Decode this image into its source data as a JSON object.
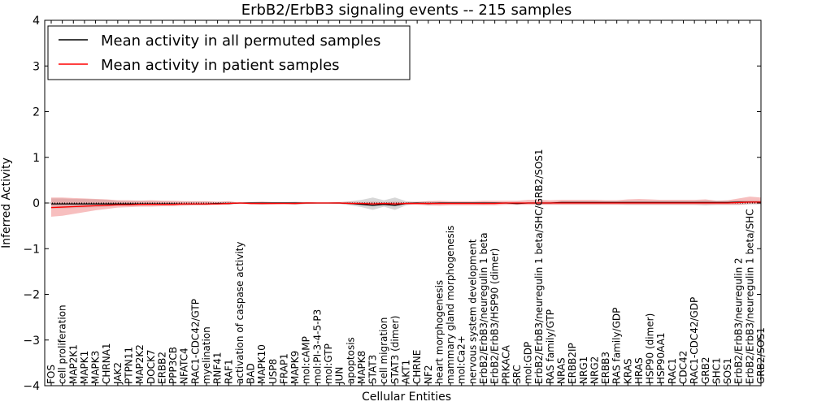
{
  "chart_data": {
    "type": "line",
    "title": "ErbB2/ErbB3 signaling events -- 215 samples",
    "xlabel": "Cellular Entities",
    "ylabel": "Inferred Activity",
    "ylim": [
      -4,
      4
    ],
    "yticks": [
      -4,
      -3,
      -2,
      -1,
      0,
      1,
      2,
      3,
      4
    ],
    "ytick_labels": [
      "−4",
      "−3",
      "−2",
      "−1",
      "0",
      "1",
      "2",
      "3",
      "4"
    ],
    "grid": false,
    "legend_position": "top-left",
    "categories": [
      "FOS",
      "cell proliferation",
      "MAP2K1",
      "MAPK1",
      "MAPK3",
      "CHRNA1",
      "JAK2",
      "PTPN11",
      "MAP2K2",
      "DOCK7",
      "ERBB2",
      "PPP3CB",
      "NFATC4",
      "RAC1-CDC42/GTP",
      "myelination",
      "RNF41",
      "RAF1",
      "activation of caspase activity",
      "BAD",
      "MAPK10",
      "USP8",
      "FRAP1",
      "MAPK9",
      "mol:cAMP",
      "mol:PI-3-4-5-P3",
      "mol:GTP",
      "JUN",
      "apoptosis",
      "MAPK8",
      "STAT3",
      "cell migration",
      "STAT3 (dimer)",
      "AKT1",
      "CHRNE",
      "NF2",
      "heart morphogenesis",
      "mammary gland morphogenesis",
      "mol:Ca2+",
      "nervous system development",
      "ErbB2/ErbB3/neuregulin 1 beta",
      "ErbB2/ErbB3/HSP90 (dimer)",
      "PRKACA",
      "SRC",
      "mol:GDP",
      "ErbB2/ErbB3/neuregulin 1 beta/SHC/GRB2/SOS1",
      "RAS family/GTP",
      "NRAS",
      "ERBB2IP",
      "NRG1",
      "NRG2",
      "ERBB3",
      "RAS family/GDP",
      "KRAS",
      "HRAS",
      "HSP90 (dimer)",
      "HSP90AA1",
      "RAC1",
      "CDC42",
      "RAC1-CDC42/GDP",
      "GRB2",
      "SHC1",
      "SOS1",
      "ErbB2/ErbB3/neuregulin 2",
      "ErbB2/ErbB3/neuregulin 1 beta/SHC",
      "GRB2/SOS1"
    ],
    "series": [
      {
        "name": "Mean activity in all permuted samples",
        "color": "#000000",
        "style": "solid",
        "values": [
          -0.02,
          -0.02,
          -0.02,
          -0.02,
          -0.02,
          -0.02,
          -0.02,
          -0.02,
          -0.02,
          -0.02,
          -0.02,
          -0.02,
          -0.02,
          -0.02,
          -0.02,
          -0.01,
          -0.01,
          0.0,
          0.0,
          0.0,
          0.0,
          0.0,
          0.0,
          0.0,
          0.0,
          0.0,
          0.0,
          -0.01,
          -0.03,
          -0.05,
          -0.03,
          -0.05,
          -0.01,
          0.0,
          -0.01,
          0.0,
          0.0,
          0.0,
          0.0,
          0.0,
          0.0,
          0.0,
          -0.01,
          0.0,
          0.0,
          0.0,
          0.01,
          0.01,
          0.01,
          0.01,
          0.01,
          0.01,
          0.01,
          0.01,
          0.01,
          0.01,
          0.01,
          0.01,
          0.01,
          0.01,
          0.01,
          0.01,
          0.02,
          0.02,
          0.02
        ],
        "band": {
          "color": "#b0b0b0",
          "lower": [
            -0.12,
            -0.12,
            -0.11,
            -0.1,
            -0.09,
            -0.08,
            -0.06,
            -0.05,
            -0.06,
            -0.05,
            -0.05,
            -0.04,
            -0.04,
            -0.04,
            -0.04,
            -0.03,
            -0.04,
            -0.01,
            -0.02,
            -0.04,
            -0.02,
            -0.02,
            -0.04,
            -0.02,
            -0.01,
            -0.01,
            -0.02,
            -0.05,
            -0.09,
            -0.15,
            -0.08,
            -0.15,
            -0.05,
            -0.02,
            -0.05,
            -0.03,
            -0.02,
            -0.02,
            -0.02,
            -0.03,
            -0.02,
            -0.02,
            -0.04,
            -0.02,
            -0.03,
            -0.03,
            -0.03,
            -0.03,
            -0.03,
            -0.03,
            -0.03,
            -0.03,
            -0.04,
            -0.04,
            -0.04,
            -0.04,
            -0.04,
            -0.04,
            -0.04,
            -0.05,
            -0.04,
            -0.04,
            -0.04,
            -0.03,
            -0.03
          ],
          "upper": [
            0.1,
            0.1,
            0.09,
            0.09,
            0.08,
            0.07,
            0.05,
            0.04,
            0.05,
            0.04,
            0.04,
            0.03,
            0.03,
            0.03,
            0.03,
            0.02,
            0.03,
            0.01,
            0.02,
            0.03,
            0.02,
            0.02,
            0.03,
            0.02,
            0.01,
            0.01,
            0.02,
            0.04,
            0.07,
            0.12,
            0.06,
            0.12,
            0.04,
            0.02,
            0.04,
            0.03,
            0.02,
            0.02,
            0.02,
            0.03,
            0.02,
            0.02,
            0.03,
            0.02,
            0.03,
            0.03,
            0.04,
            0.04,
            0.04,
            0.04,
            0.04,
            0.04,
            0.05,
            0.05,
            0.05,
            0.05,
            0.05,
            0.05,
            0.05,
            0.06,
            0.05,
            0.05,
            0.06,
            0.06,
            0.06
          ]
        }
      },
      {
        "name": "Mean activity in patient samples",
        "color": "#ff0000",
        "style": "solid",
        "values": [
          -0.1,
          -0.09,
          -0.08,
          -0.07,
          -0.06,
          -0.05,
          -0.04,
          -0.04,
          -0.03,
          -0.03,
          -0.03,
          -0.03,
          -0.02,
          -0.02,
          -0.02,
          -0.02,
          -0.01,
          0.0,
          -0.01,
          -0.01,
          -0.01,
          -0.01,
          -0.01,
          0.0,
          0.0,
          0.0,
          0.0,
          -0.01,
          -0.01,
          -0.02,
          -0.01,
          -0.02,
          -0.01,
          -0.01,
          -0.01,
          -0.01,
          -0.01,
          -0.01,
          -0.01,
          -0.01,
          -0.01,
          0.0,
          0.0,
          0.0,
          0.0,
          0.0,
          0.0,
          0.0,
          0.0,
          0.0,
          0.0,
          0.0,
          0.0,
          0.0,
          0.0,
          0.0,
          0.0,
          0.0,
          0.0,
          0.0,
          0.0,
          0.0,
          0.01,
          0.02,
          0.02
        ],
        "band": {
          "color": "#f08080",
          "lower": [
            -0.3,
            -0.28,
            -0.24,
            -0.2,
            -0.16,
            -0.13,
            -0.1,
            -0.09,
            -0.08,
            -0.08,
            -0.07,
            -0.07,
            -0.06,
            -0.05,
            -0.05,
            -0.04,
            -0.03,
            -0.01,
            -0.03,
            -0.03,
            -0.03,
            -0.02,
            -0.03,
            -0.02,
            -0.01,
            -0.01,
            -0.02,
            -0.03,
            -0.03,
            -0.04,
            -0.03,
            -0.04,
            -0.03,
            -0.04,
            -0.05,
            -0.06,
            -0.05,
            -0.05,
            -0.05,
            -0.05,
            -0.05,
            -0.04,
            -0.04,
            -0.04,
            -0.04,
            -0.04,
            -0.04,
            -0.04,
            -0.04,
            -0.04,
            -0.04,
            -0.04,
            -0.04,
            -0.04,
            -0.04,
            -0.04,
            -0.04,
            -0.04,
            -0.04,
            -0.04,
            -0.04,
            -0.04,
            -0.04,
            -0.02,
            -0.02
          ],
          "upper": [
            0.12,
            0.12,
            0.11,
            0.1,
            0.09,
            0.08,
            0.06,
            0.06,
            0.05,
            0.06,
            0.05,
            0.05,
            0.04,
            0.04,
            0.04,
            0.03,
            0.04,
            0.01,
            0.02,
            0.03,
            0.02,
            0.02,
            0.02,
            0.02,
            0.01,
            0.01,
            0.02,
            0.03,
            0.02,
            0.03,
            0.02,
            0.03,
            0.02,
            0.03,
            0.04,
            0.05,
            0.04,
            0.04,
            0.04,
            0.05,
            0.05,
            0.05,
            0.05,
            0.07,
            0.07,
            0.06,
            0.07,
            0.07,
            0.07,
            0.07,
            0.06,
            0.06,
            0.08,
            0.09,
            0.08,
            0.07,
            0.07,
            0.07,
            0.07,
            0.08,
            0.05,
            0.06,
            0.1,
            0.14,
            0.12
          ]
        }
      }
    ],
    "reference_line": {
      "y": 0,
      "style": "dotted",
      "color": "#000000"
    }
  }
}
